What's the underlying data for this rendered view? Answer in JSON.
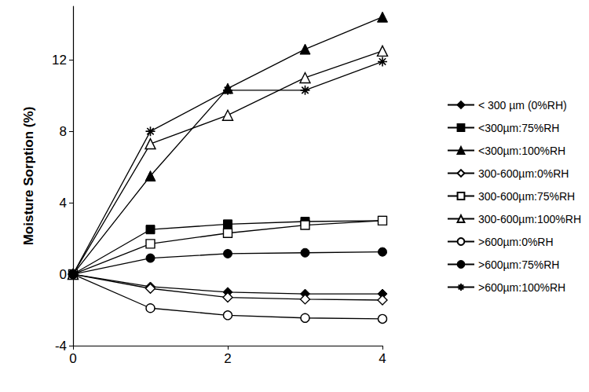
{
  "chart_data": {
    "type": "line",
    "y_label": "Moisture Sorption (%)",
    "xlim": [
      0,
      4
    ],
    "xticks": [
      0,
      2,
      4
    ],
    "ylim": [
      -4,
      15
    ],
    "yticks": [
      -4,
      0,
      4,
      8,
      12
    ],
    "grid": false,
    "legend": "right",
    "series": [
      {
        "name": "< 300 µm (0%RH)",
        "color": "#000000",
        "marker": "diamond",
        "x": [
          0,
          1,
          2,
          3,
          4
        ],
        "values": [
          0,
          -0.7,
          -1.0,
          -1.1,
          -1.1
        ]
      },
      {
        "name": "<300µm:75%RH",
        "color": "#000000",
        "marker": "square",
        "x": [
          0,
          1,
          2,
          3,
          4
        ],
        "values": [
          0,
          2.5,
          2.8,
          2.95,
          3.0
        ]
      },
      {
        "name": "<300µm:100%RH",
        "color": "#000000",
        "marker": "triangle",
        "x": [
          0,
          1,
          2,
          3,
          4
        ],
        "values": [
          0,
          5.5,
          10.4,
          12.6,
          14.4
        ]
      },
      {
        "name": "300-600µm:0%RH",
        "color": "#000000",
        "marker": "open-diamond",
        "x": [
          0,
          1,
          2,
          3,
          4
        ],
        "values": [
          0,
          -0.8,
          -1.3,
          -1.4,
          -1.45
        ]
      },
      {
        "name": "300-600µm:75%RH",
        "color": "#000000",
        "marker": "open-square",
        "x": [
          0,
          1,
          2,
          3,
          4
        ],
        "values": [
          0,
          1.7,
          2.3,
          2.75,
          3.0
        ]
      },
      {
        "name": "300-600µm:100%RH",
        "color": "#000000",
        "marker": "open-triangle",
        "x": [
          0,
          1,
          2,
          3,
          4
        ],
        "values": [
          0,
          7.3,
          8.9,
          11.0,
          12.5
        ]
      },
      {
        "name": ">600µm:0%RH",
        "color": "#000000",
        "marker": "open-circle",
        "x": [
          0,
          1,
          2,
          3,
          4
        ],
        "values": [
          0,
          -1.9,
          -2.3,
          -2.45,
          -2.5
        ]
      },
      {
        "name": ">600µm:75%RH",
        "color": "#000000",
        "marker": "circle",
        "x": [
          0,
          1,
          2,
          3,
          4
        ],
        "values": [
          0,
          0.9,
          1.15,
          1.2,
          1.25
        ]
      },
      {
        "name": ">600µm:100%RH",
        "color": "#000000",
        "marker": "asterisk",
        "x": [
          0,
          1,
          2,
          3,
          4
        ],
        "values": [
          0,
          8.0,
          10.3,
          10.3,
          11.9
        ]
      }
    ]
  }
}
